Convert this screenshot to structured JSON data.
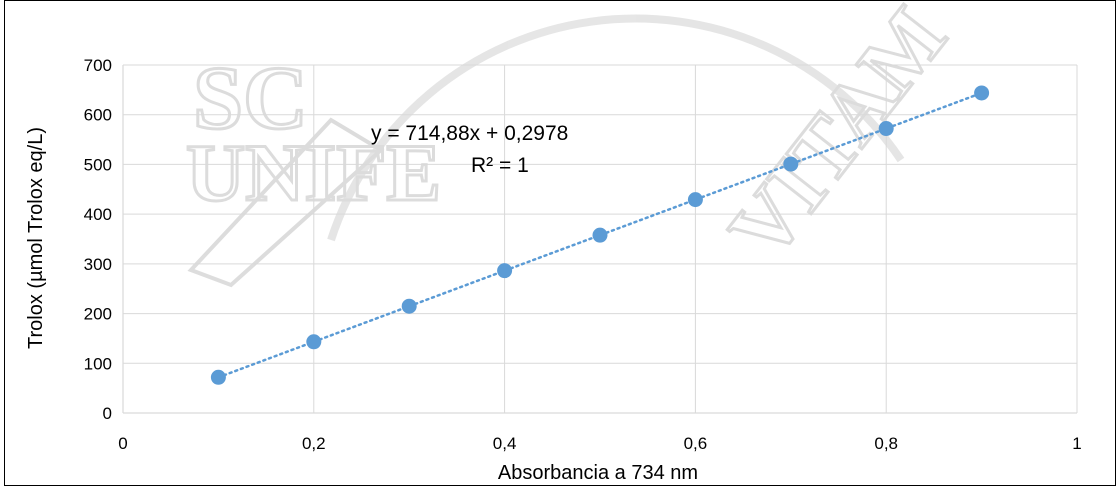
{
  "chart_data": {
    "type": "scatter",
    "xlabel": "Absorbancia a 734 nm",
    "ylabel": "Trolox (µmol Trolox eq/L)",
    "xlim": [
      0,
      1
    ],
    "ylim": [
      0,
      700
    ],
    "x_ticks": [
      "0",
      "0,2",
      "0,4",
      "0,6",
      "0,8",
      "1"
    ],
    "y_ticks": [
      "0",
      "100",
      "200",
      "300",
      "400",
      "500",
      "600",
      "700"
    ],
    "grid": true,
    "series": [
      {
        "x": [
          0.1,
          0.2,
          0.3,
          0.4,
          0.5,
          0.6,
          0.7,
          0.8,
          0.9
        ],
        "y": [
          71.8,
          143.3,
          214.8,
          286.3,
          357.7,
          429.2,
          500.7,
          572.2,
          643.7
        ],
        "color": "#5b9bd5"
      }
    ],
    "trendline": {
      "type": "linear",
      "slope": 714.88,
      "intercept": 0.2978,
      "equation": "y = 714,88x + 0,2978",
      "r_squared": "R² = 1",
      "color": "#5b9bd5",
      "style": "dotted"
    }
  },
  "watermark": {
    "text_sc": "SC",
    "text_unife": "UNIFE",
    "text_vitam": "VITAM"
  }
}
